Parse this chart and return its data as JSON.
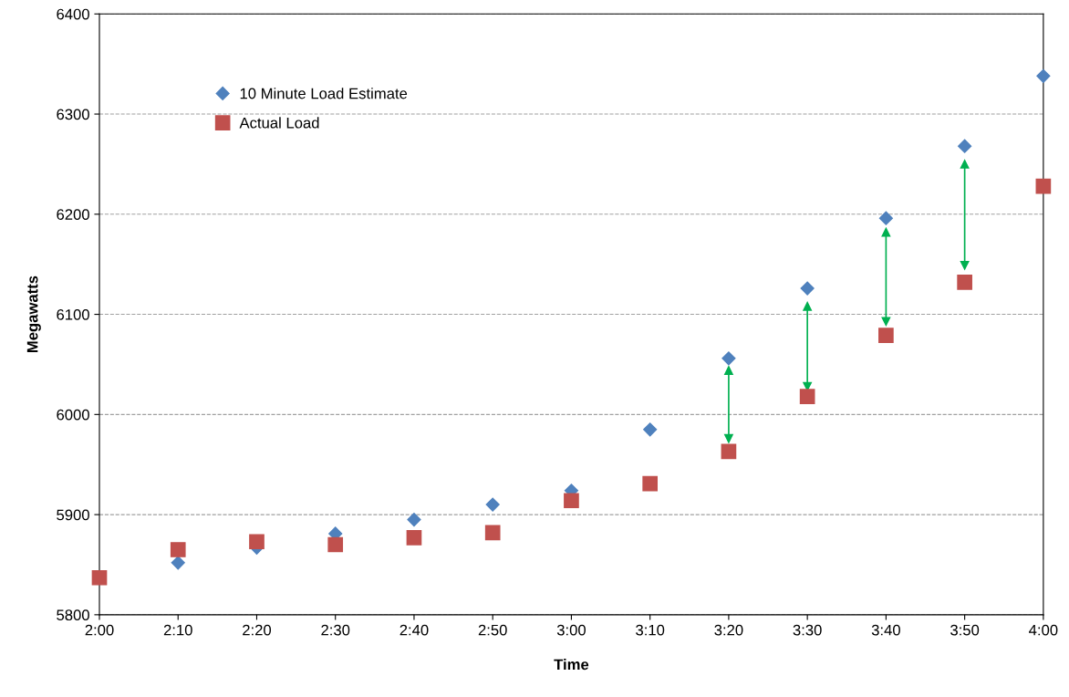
{
  "chart_data": {
    "type": "scatter",
    "xlabel": "Time",
    "ylabel": "Megawatts",
    "categories": [
      "2:00",
      "2:10",
      "2:20",
      "2:30",
      "2:40",
      "2:50",
      "3:00",
      "3:10",
      "3:20",
      "3:30",
      "3:40",
      "3:50",
      "4:00"
    ],
    "series": [
      {
        "name": "10 Minute Load Estimate",
        "color": "#4f81bd",
        "marker": "diamond",
        "values": [
          null,
          5852,
          5867,
          5881,
          5895,
          5910,
          5924,
          5985,
          6056,
          6126,
          6196,
          6268,
          6338
        ]
      },
      {
        "name": "Actual Load",
        "color": "#c0504d",
        "marker": "square",
        "values": [
          5837,
          5865,
          5873,
          5870,
          5877,
          5882,
          5914,
          5931,
          5963,
          6018,
          6079,
          6132,
          6228
        ],
        "errors": [
          null,
          null,
          null,
          null,
          null,
          null,
          null,
          null,
          [
            5976,
            6044
          ],
          [
            6028,
            6108
          ],
          [
            6093,
            6182
          ],
          [
            6149,
            6250
          ],
          null
        ]
      }
    ],
    "ylim": [
      5800,
      6400
    ],
    "yticks": [
      5800,
      5900,
      6000,
      6100,
      6200,
      6300,
      6400
    ],
    "grid": "y",
    "legend": "top left"
  }
}
